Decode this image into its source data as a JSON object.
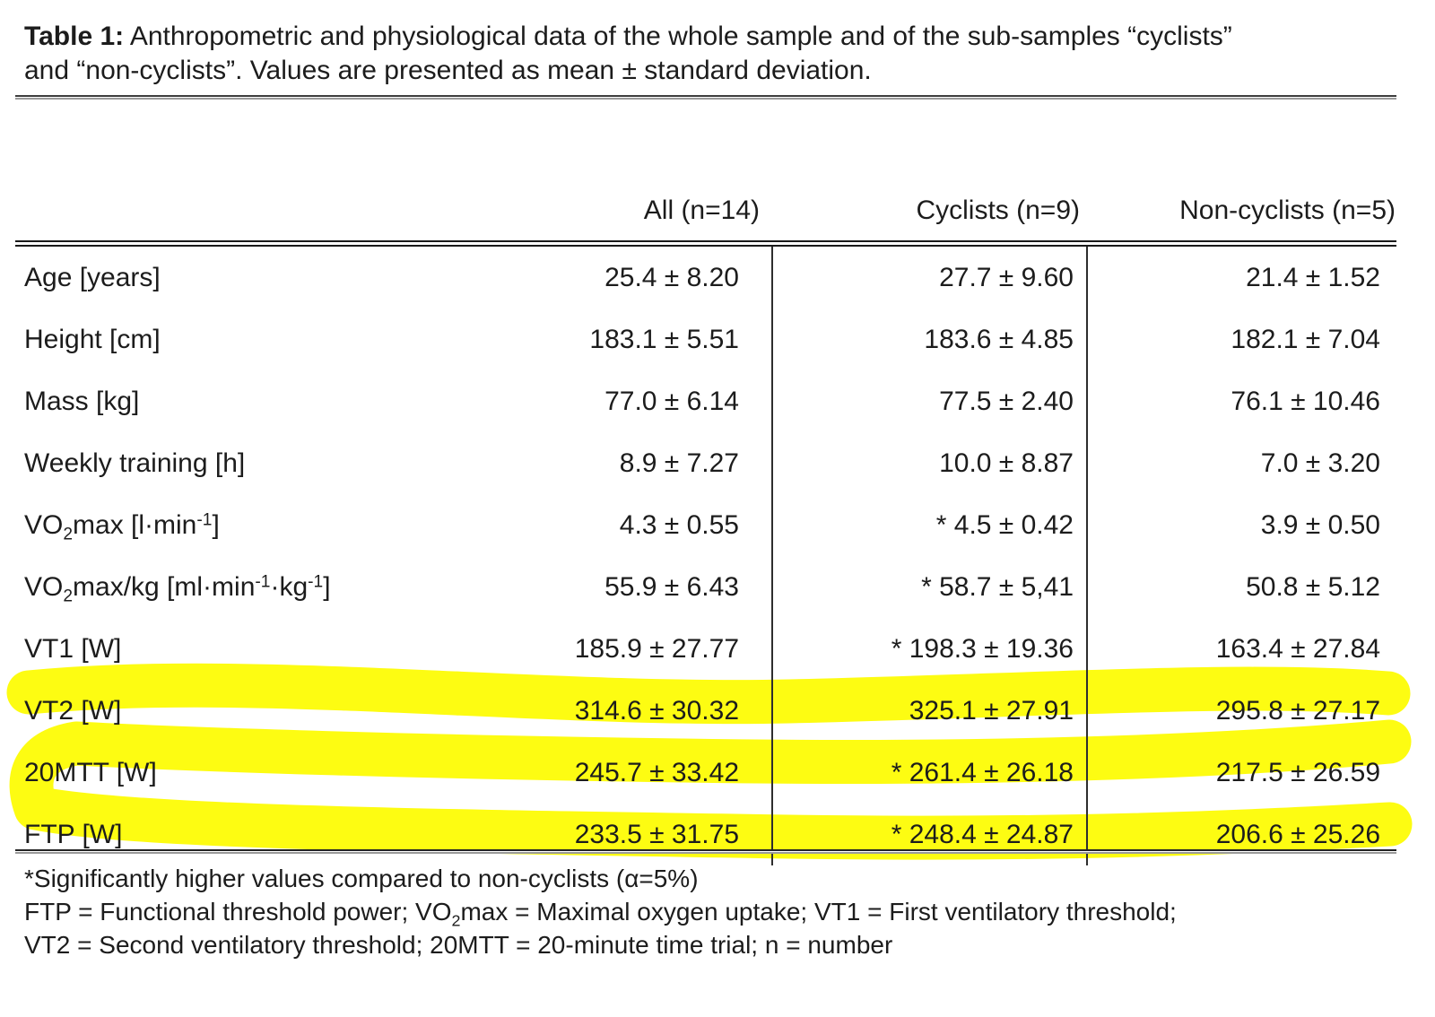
{
  "caption": {
    "label": "Table 1:",
    "line1": " Anthropometric and physiological data of the whole sample and of the sub-samples “cyclists”",
    "line2": "and “non-cyclists”. Values are presented as mean ± standard deviation."
  },
  "table": {
    "headers": {
      "all": "All (n=14)",
      "cyclists": "Cyclists (n=9)",
      "noncyclists": "Non-cyclists (n=5)"
    },
    "rows": [
      {
        "label": "Age [years]",
        "all": "25.4 ± 8.20",
        "cyclists": "27.7 ± 9.60",
        "noncyclists": "21.4 ± 1.52",
        "highlighted": false
      },
      {
        "label": "Height [cm]",
        "all": "183.1 ± 5.51",
        "cyclists": "183.6 ± 4.85",
        "noncyclists": "182.1 ± 7.04",
        "highlighted": false
      },
      {
        "label": "Mass [kg]",
        "all": "77.0 ± 6.14",
        "cyclists": "77.5 ± 2.40",
        "noncyclists": "76.1 ± 10.46",
        "highlighted": false
      },
      {
        "label": "Weekly training [h]",
        "all": "8.9 ± 7.27",
        "cyclists": "10.0 ± 8.87",
        "noncyclists": "7.0 ± 3.20",
        "highlighted": false
      },
      {
        "label": "VO~2~max [l·min^-1^]",
        "all": "4.3 ± 0.55",
        "cyclists": "* 4.5 ± 0.42",
        "noncyclists": "3.9 ± 0.50",
        "highlighted": false
      },
      {
        "label": "VO~2~max/kg [ml·min^-1^·kg^-1^]",
        "all": "55.9 ± 6.43",
        "cyclists": "* 58.7 ± 5,41",
        "noncyclists": "50.8 ± 5.12",
        "highlighted": false
      },
      {
        "label": "VT1 [W]",
        "all": "185.9 ± 27.77",
        "cyclists": "* 198.3 ± 19.36",
        "noncyclists": "163.4 ± 27.84",
        "highlighted": false
      },
      {
        "label": "VT2 [W]",
        "all": "314.6 ± 30.32",
        "cyclists": "325.1 ± 27.91",
        "noncyclists": "295.8 ± 27.17",
        "highlighted": true
      },
      {
        "label": "20MTT [W]",
        "all": "245.7 ± 33.42",
        "cyclists": "* 261.4 ± 26.18",
        "noncyclists": "217.5 ± 26.59",
        "highlighted": true
      },
      {
        "label": "FTP [W]",
        "all": "233.5 ± 31.75",
        "cyclists": "* 248.4 ± 24.87",
        "noncyclists": "206.6 ± 25.26",
        "highlighted": true
      }
    ]
  },
  "footnotes": [
    "*Significantly higher values compared to non-cyclists (α=5%)",
    "FTP = Functional threshold power; VO~2~max = Maximal oxygen uptake; VT1 = First ventilatory threshold;",
    "VT2 = Second ventilatory threshold; 20MTT = 20-minute time trial; n = number"
  ],
  "colors": {
    "highlighter": "#fdfc00",
    "text": "#1c1c1c"
  }
}
